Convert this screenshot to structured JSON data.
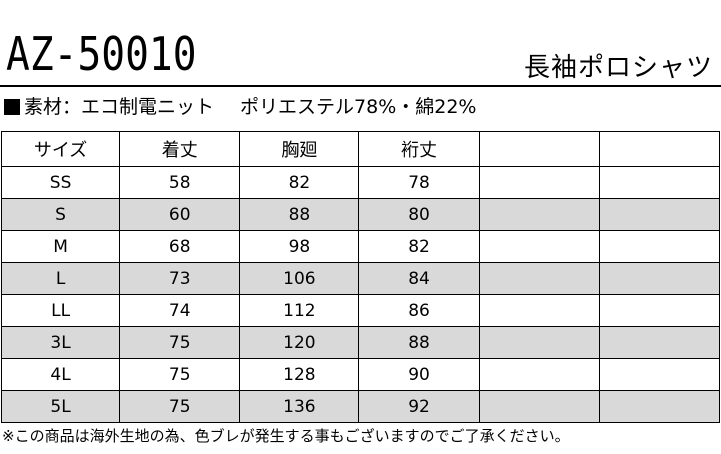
{
  "product": {
    "code": "AZ-50010",
    "name": "長袖ポロシャツ"
  },
  "material": {
    "label": "素材：エコ制電ニット",
    "composition": "ポリエステル78%・綿22%"
  },
  "table": {
    "headers": [
      "サイズ",
      "着丈",
      "胸廻",
      "裄丈",
      "",
      ""
    ],
    "rows": [
      {
        "size": "SS",
        "length": "58",
        "chest": "82",
        "sleeve": "78",
        "extra1": "",
        "extra2": ""
      },
      {
        "size": "S",
        "length": "60",
        "chest": "88",
        "sleeve": "80",
        "extra1": "",
        "extra2": ""
      },
      {
        "size": "M",
        "length": "68",
        "chest": "98",
        "sleeve": "82",
        "extra1": "",
        "extra2": ""
      },
      {
        "size": "L",
        "length": "73",
        "chest": "106",
        "sleeve": "84",
        "extra1": "",
        "extra2": ""
      },
      {
        "size": "LL",
        "length": "74",
        "chest": "112",
        "sleeve": "86",
        "extra1": "",
        "extra2": ""
      },
      {
        "size": "3L",
        "length": "75",
        "chest": "120",
        "sleeve": "88",
        "extra1": "",
        "extra2": ""
      },
      {
        "size": "4L",
        "length": "75",
        "chest": "128",
        "sleeve": "90",
        "extra1": "",
        "extra2": ""
      },
      {
        "size": "5L",
        "length": "75",
        "chest": "136",
        "sleeve": "92",
        "extra1": "",
        "extra2": ""
      }
    ]
  },
  "note": "※この商品は海外生地の為、色ブレが発生する事もございますのでご了承ください。",
  "colors": {
    "shaded_row": "#d9d9d9",
    "text": "#000000",
    "background": "#ffffff"
  }
}
